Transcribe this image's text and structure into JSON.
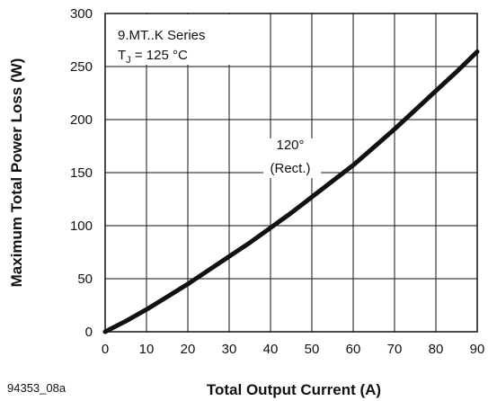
{
  "chart_data": {
    "type": "line",
    "xlabel": "Total Output Current (A)",
    "ylabel": "Maximum Total Power Loss (W)",
    "xlim": [
      0,
      90
    ],
    "ylim": [
      0,
      300
    ],
    "xticks": [
      "0",
      "10",
      "20",
      "30",
      "40",
      "50",
      "60",
      "70",
      "80",
      "90"
    ],
    "yticks": [
      "0",
      "50",
      "100",
      "150",
      "200",
      "250",
      "300"
    ],
    "grid": true,
    "series": [
      {
        "x": [
          0,
          5,
          10,
          15,
          20,
          25,
          30,
          35,
          40,
          45,
          50,
          55,
          60,
          65,
          70,
          75,
          80,
          85,
          90
        ],
        "values": [
          0,
          10,
          21,
          33,
          45,
          58,
          71,
          84,
          98,
          112,
          127,
          142,
          157,
          174,
          191,
          209,
          227,
          245,
          264
        ],
        "color": "#111111"
      }
    ],
    "annotations": {
      "series_name": "9.MT..K Series",
      "tj_prefix": "T",
      "tj_sub": "J",
      "tj_value": " = 125 °C",
      "angle": "120°",
      "waveform": "(Rect.)"
    },
    "figure_code": "94353_08a"
  }
}
